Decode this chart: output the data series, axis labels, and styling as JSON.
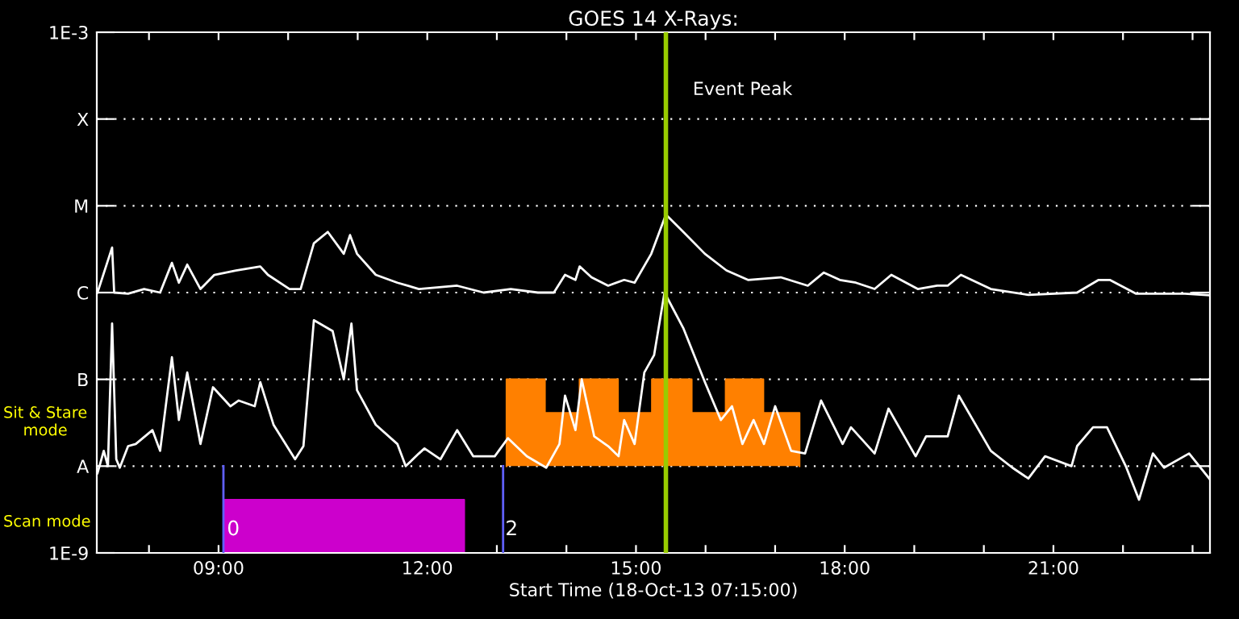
{
  "chart_data": {
    "type": "line",
    "title": "GOES 14 X-Rays:",
    "xlabel": "Start Time (18-Oct-13 07:15:00)",
    "log": "y",
    "grid": "y",
    "legend": false,
    "marker": "none",
    "line_style": "solid",
    "xlim": [
      7.25,
      23.25
    ],
    "xticks": [
      {
        "value": 8,
        "label": null
      },
      {
        "value": 9,
        "label": "09:00"
      },
      {
        "value": 10,
        "label": null
      },
      {
        "value": 11,
        "label": null
      },
      {
        "value": 12,
        "label": "12:00"
      },
      {
        "value": 13,
        "label": null
      },
      {
        "value": 14,
        "label": null
      },
      {
        "value": 15,
        "label": "15:00"
      },
      {
        "value": 16,
        "label": null
      },
      {
        "value": 17,
        "label": null
      },
      {
        "value": 18,
        "label": "18:00"
      },
      {
        "value": 19,
        "label": null
      },
      {
        "value": 20,
        "label": null
      },
      {
        "value": 21,
        "label": "21:00"
      },
      {
        "value": 22,
        "label": null
      },
      {
        "value": 23,
        "label": null
      }
    ],
    "ylim": [
      1e-09,
      0.001
    ],
    "yticks": [
      {
        "value": 1e-09,
        "label": "1E-9"
      },
      {
        "value": 1e-08,
        "label": "A"
      },
      {
        "value": 1e-07,
        "label": "B"
      },
      {
        "value": 1e-06,
        "label": "C"
      },
      {
        "value": 1e-05,
        "label": "M"
      },
      {
        "value": 0.0001,
        "label": "X"
      },
      {
        "value": 0.001,
        "label": "1E-3"
      }
    ],
    "series": [
      {
        "type": "area",
        "color": "#cc00cc",
        "x": [
          9.09,
          9.09,
          12.53,
          12.53
        ],
        "values": [
          1e-09,
          4.1e-09,
          4.1e-09,
          1e-09
        ]
      },
      {
        "type": "area",
        "color": "#ff8000",
        "x": [
          13.14,
          13.14,
          13.69,
          13.69,
          14.19,
          14.19,
          14.74,
          14.74,
          15.23,
          15.23,
          15.8,
          15.8,
          16.29,
          16.29,
          16.83,
          16.83,
          17.35,
          17.35
        ],
        "values": [
          1e-08,
          1e-07,
          1e-07,
          4.1e-08,
          4.1e-08,
          1e-07,
          1e-07,
          4.1e-08,
          4.1e-08,
          1e-07,
          1e-07,
          4.1e-08,
          4.1e-08,
          1e-07,
          1e-07,
          4.1e-08,
          4.1e-08,
          1e-08
        ]
      },
      {
        "type": "line",
        "color": "#6060ff",
        "x": [
          9.07,
          9.07
        ],
        "values": [
          1e-09,
          1e-08
        ]
      },
      {
        "type": "line",
        "color": "#6060ff",
        "x": [
          13.09,
          13.09
        ],
        "values": [
          1e-09,
          1e-08
        ]
      },
      {
        "color": "#ffffff",
        "x": [
          7.26,
          7.47,
          7.5,
          7.7,
          7.93,
          8.16,
          8.33,
          8.43,
          8.55,
          8.74,
          8.94,
          9.25,
          9.6,
          9.71,
          10.02,
          10.18,
          10.37,
          10.57,
          10.8,
          10.89,
          10.99,
          11.26,
          11.57,
          11.88,
          12.43,
          12.81,
          13.2,
          13.59,
          13.82,
          13.98,
          14.13,
          14.19,
          14.36,
          14.6,
          14.83,
          14.98,
          15.22,
          15.43,
          15.68,
          15.99,
          16.3,
          16.61,
          17.08,
          17.47,
          17.7,
          17.93,
          18.16,
          18.43,
          18.67,
          19.05,
          19.33,
          19.48,
          19.67,
          20.1,
          20.64,
          21.34,
          21.65,
          21.81,
          22.19,
          22.89,
          23.24
        ],
        "values": [
          1e-06,
          3.3e-06,
          1e-06,
          9.7e-07,
          1.1e-06,
          1e-06,
          2.2e-06,
          1.3e-06,
          2.1e-06,
          1.1e-06,
          1.6e-06,
          1.8e-06,
          2e-06,
          1.6e-06,
          1.1e-06,
          1.1e-06,
          3.7e-06,
          5e-06,
          2.8e-06,
          4.6e-06,
          2.8e-06,
          1.6e-06,
          1.3e-06,
          1.1e-06,
          1.2e-06,
          1e-06,
          1.1e-06,
          1e-06,
          1e-06,
          1.6e-06,
          1.4e-06,
          2e-06,
          1.5e-06,
          1.2e-06,
          1.4e-06,
          1.3e-06,
          2.8e-06,
          7.9e-06,
          5e-06,
          2.8e-06,
          1.8e-06,
          1.4e-06,
          1.5e-06,
          1.2e-06,
          1.7e-06,
          1.4e-06,
          1.3e-06,
          1.1e-06,
          1.6e-06,
          1.1e-06,
          1.2e-06,
          1.2e-06,
          1.6e-06,
          1.1e-06,
          9.4e-07,
          1e-06,
          1.4e-06,
          1.4e-06,
          9.7e-07,
          9.7e-07,
          9.3e-07
        ]
      },
      {
        "color": "#ffffff",
        "x": [
          7.26,
          7.35,
          7.41,
          7.47,
          7.53,
          7.58,
          7.7,
          7.81,
          8.05,
          8.16,
          8.33,
          8.43,
          8.55,
          8.74,
          8.92,
          9.17,
          9.29,
          9.52,
          9.6,
          9.79,
          10.1,
          10.22,
          10.37,
          10.64,
          10.8,
          10.91,
          10.99,
          11.26,
          11.57,
          11.69,
          11.88,
          11.96,
          12.19,
          12.43,
          12.66,
          12.97,
          13.16,
          13.43,
          13.71,
          13.9,
          13.98,
          14.13,
          14.22,
          14.4,
          14.6,
          14.75,
          14.83,
          14.98,
          15.12,
          15.26,
          15.41,
          15.68,
          15.99,
          16.22,
          16.38,
          16.53,
          16.69,
          16.84,
          17.0,
          17.23,
          17.43,
          17.66,
          17.97,
          18.09,
          18.43,
          18.63,
          19.02,
          19.17,
          19.48,
          19.64,
          20.1,
          20.41,
          20.64,
          20.88,
          21.26,
          21.34,
          21.57,
          21.77,
          22.04,
          22.23,
          22.43,
          22.59,
          22.95,
          23.24
        ],
        "values": [
          8.3e-09,
          1.5e-08,
          1e-08,
          4.4e-07,
          1.2e-08,
          9.6e-09,
          1.7e-08,
          1.8e-08,
          2.6e-08,
          1.5e-08,
          1.8e-07,
          3.4e-08,
          1.2e-07,
          1.8e-08,
          8.1e-08,
          4.9e-08,
          5.7e-08,
          4.9e-08,
          9.3e-08,
          3e-08,
          1.2e-08,
          1.7e-08,
          4.8e-07,
          3.6e-07,
          1e-07,
          4.4e-07,
          7.5e-08,
          3e-08,
          1.8e-08,
          1e-08,
          1.4e-08,
          1.6e-08,
          1.2e-08,
          2.6e-08,
          1.3e-08,
          1.3e-08,
          2.1e-08,
          1.3e-08,
          9.6e-09,
          1.8e-08,
          6.5e-08,
          2.6e-08,
          1e-07,
          2.2e-08,
          1.7e-08,
          1.3e-08,
          3.4e-08,
          1.8e-08,
          1.2e-07,
          1.9e-07,
          1e-06,
          3.9e-07,
          9.3e-08,
          3.4e-08,
          4.9e-08,
          1.8e-08,
          3.4e-08,
          1.8e-08,
          4.9e-08,
          1.5e-08,
          1.4e-08,
          5.7e-08,
          1.8e-08,
          2.8e-08,
          1.4e-08,
          4.6e-08,
          1.3e-08,
          2.2e-08,
          2.2e-08,
          6.5e-08,
          1.5e-08,
          9.6e-09,
          7.2e-09,
          1.3e-08,
          1e-08,
          1.7e-08,
          2.8e-08,
          2.8e-08,
          1e-08,
          4.1e-09,
          1.4e-08,
          9.6e-09,
          1.4e-08,
          7.2e-09
        ]
      }
    ],
    "ref_lines": [
      {
        "axis": "x",
        "value": 15.43,
        "label": "Event Peak",
        "color": "#99cc00"
      }
    ],
    "annotations": [
      {
        "text": "0",
        "x": 9.12,
        "y": 1.6e-09
      },
      {
        "text": "2",
        "x": 13.12,
        "y": 1.6e-09
      },
      "Sit & Stare\nmode",
      "Scan mode"
    ]
  }
}
